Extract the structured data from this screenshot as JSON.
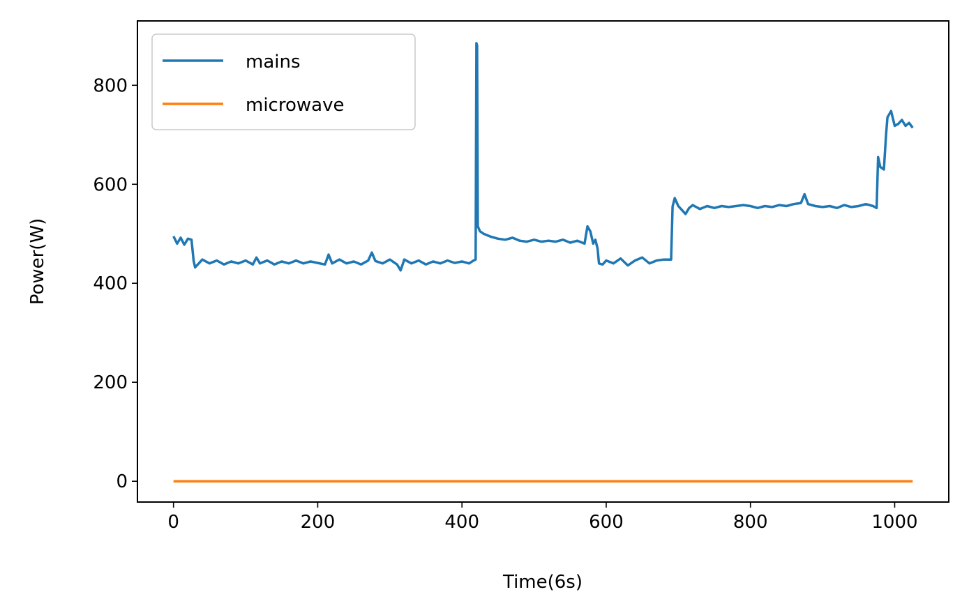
{
  "chart_data": {
    "type": "line",
    "xlabel": "Time(6s)",
    "ylabel": "Power(W)",
    "xlim": [
      -50,
      1075
    ],
    "ylim": [
      -42,
      930
    ],
    "xticks": [
      0,
      200,
      400,
      600,
      800,
      1000
    ],
    "yticks": [
      0,
      200,
      400,
      600,
      800
    ],
    "grid": false,
    "legend": {
      "placement": "top-left"
    },
    "series": [
      {
        "name": "mains",
        "color": "#1f77b4",
        "points": [
          [
            0,
            495
          ],
          [
            5,
            480
          ],
          [
            10,
            492
          ],
          [
            15,
            478
          ],
          [
            20,
            490
          ],
          [
            25,
            488
          ],
          [
            28,
            445
          ],
          [
            30,
            432
          ],
          [
            35,
            440
          ],
          [
            40,
            448
          ],
          [
            50,
            440
          ],
          [
            60,
            446
          ],
          [
            70,
            438
          ],
          [
            80,
            444
          ],
          [
            90,
            440
          ],
          [
            100,
            446
          ],
          [
            110,
            438
          ],
          [
            115,
            452
          ],
          [
            120,
            440
          ],
          [
            130,
            446
          ],
          [
            140,
            438
          ],
          [
            150,
            444
          ],
          [
            160,
            440
          ],
          [
            170,
            446
          ],
          [
            180,
            440
          ],
          [
            190,
            444
          ],
          [
            200,
            441
          ],
          [
            210,
            438
          ],
          [
            215,
            458
          ],
          [
            220,
            440
          ],
          [
            230,
            448
          ],
          [
            240,
            440
          ],
          [
            250,
            444
          ],
          [
            260,
            438
          ],
          [
            270,
            446
          ],
          [
            275,
            462
          ],
          [
            280,
            445
          ],
          [
            290,
            440
          ],
          [
            300,
            448
          ],
          [
            310,
            438
          ],
          [
            315,
            426
          ],
          [
            320,
            448
          ],
          [
            330,
            440
          ],
          [
            340,
            446
          ],
          [
            350,
            438
          ],
          [
            360,
            444
          ],
          [
            370,
            440
          ],
          [
            380,
            446
          ],
          [
            390,
            441
          ],
          [
            400,
            444
          ],
          [
            410,
            440
          ],
          [
            415,
            445
          ],
          [
            419,
            448
          ],
          [
            420,
            885
          ],
          [
            421,
            880
          ],
          [
            422,
            515
          ],
          [
            425,
            505
          ],
          [
            430,
            500
          ],
          [
            440,
            494
          ],
          [
            450,
            490
          ],
          [
            460,
            488
          ],
          [
            470,
            492
          ],
          [
            480,
            486
          ],
          [
            490,
            484
          ],
          [
            500,
            488
          ],
          [
            510,
            484
          ],
          [
            520,
            486
          ],
          [
            530,
            484
          ],
          [
            540,
            488
          ],
          [
            550,
            482
          ],
          [
            560,
            486
          ],
          [
            570,
            480
          ],
          [
            574,
            515
          ],
          [
            578,
            505
          ],
          [
            582,
            480
          ],
          [
            585,
            488
          ],
          [
            588,
            470
          ],
          [
            590,
            440
          ],
          [
            595,
            438
          ],
          [
            600,
            446
          ],
          [
            610,
            440
          ],
          [
            620,
            450
          ],
          [
            630,
            436
          ],
          [
            640,
            446
          ],
          [
            650,
            452
          ],
          [
            660,
            440
          ],
          [
            670,
            446
          ],
          [
            680,
            448
          ],
          [
            690,
            448
          ],
          [
            692,
            555
          ],
          [
            695,
            572
          ],
          [
            700,
            556
          ],
          [
            705,
            548
          ],
          [
            710,
            540
          ],
          [
            715,
            552
          ],
          [
            720,
            558
          ],
          [
            730,
            550
          ],
          [
            740,
            556
          ],
          [
            750,
            552
          ],
          [
            760,
            556
          ],
          [
            770,
            554
          ],
          [
            780,
            556
          ],
          [
            790,
            558
          ],
          [
            800,
            556
          ],
          [
            810,
            552
          ],
          [
            820,
            556
          ],
          [
            830,
            554
          ],
          [
            840,
            558
          ],
          [
            850,
            556
          ],
          [
            860,
            560
          ],
          [
            870,
            562
          ],
          [
            875,
            580
          ],
          [
            880,
            560
          ],
          [
            890,
            556
          ],
          [
            900,
            554
          ],
          [
            910,
            556
          ],
          [
            920,
            552
          ],
          [
            930,
            558
          ],
          [
            940,
            554
          ],
          [
            950,
            556
          ],
          [
            960,
            560
          ],
          [
            970,
            556
          ],
          [
            975,
            552
          ],
          [
            977,
            655
          ],
          [
            980,
            635
          ],
          [
            985,
            630
          ],
          [
            988,
            700
          ],
          [
            990,
            735
          ],
          [
            995,
            748
          ],
          [
            1000,
            718
          ],
          [
            1005,
            722
          ],
          [
            1010,
            730
          ],
          [
            1015,
            718
          ],
          [
            1020,
            724
          ],
          [
            1025,
            714
          ]
        ]
      },
      {
        "name": "microwave",
        "color": "#ff7f0e",
        "points": [
          [
            0,
            0
          ],
          [
            1025,
            0
          ]
        ]
      }
    ]
  }
}
